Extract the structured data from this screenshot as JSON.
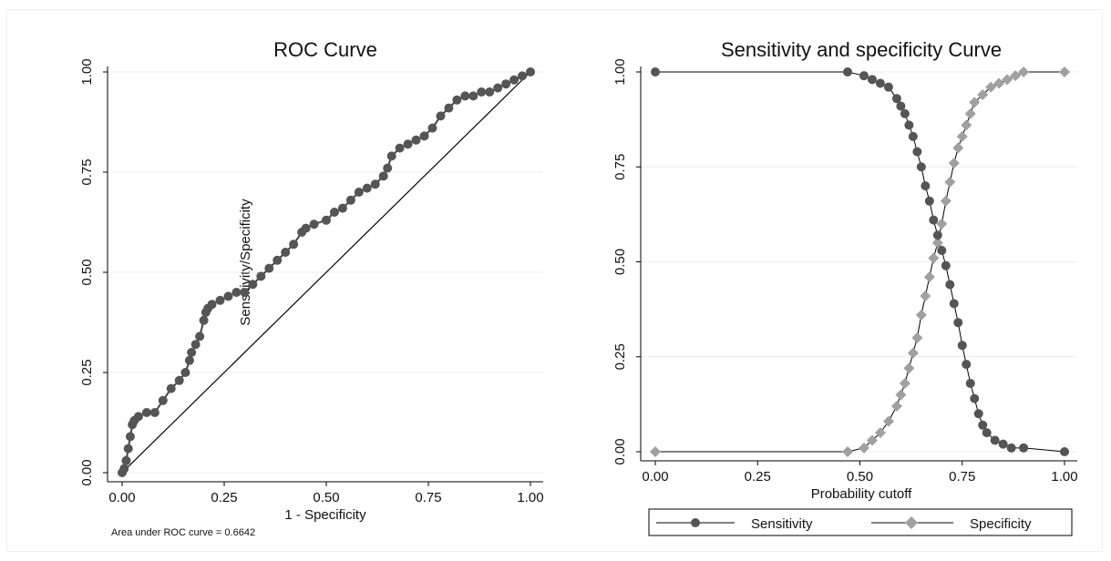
{
  "colors": {
    "sensitivity": "#555555",
    "specificity": "#a0a0a0",
    "line": "#000000",
    "grid": "#ececec"
  },
  "chart_data": [
    {
      "type": "line",
      "title": "ROC Curve",
      "xlabel": "1 - Specificity",
      "ylabel": "",
      "annotation": "Sensitivity/Specificity",
      "footnote": "Area under ROC curve = 0.6642",
      "xlim": [
        0,
        1
      ],
      "ylim": [
        0,
        1
      ],
      "xticks": [
        "0.00",
        "0.25",
        "0.50",
        "0.75",
        "1.00"
      ],
      "yticks": [
        "0.00",
        "0.25",
        "0.50",
        "0.75",
        "1.00"
      ],
      "grid": true,
      "reference_line": [
        [
          0,
          0
        ],
        [
          1,
          1
        ]
      ],
      "series": [
        {
          "x": [
            0.0,
            0.005,
            0.01,
            0.015,
            0.02,
            0.025,
            0.03,
            0.04,
            0.06,
            0.08,
            0.1,
            0.12,
            0.14,
            0.155,
            0.165,
            0.17,
            0.18,
            0.19,
            0.2,
            0.205,
            0.21,
            0.22,
            0.24,
            0.26,
            0.28,
            0.3,
            0.32,
            0.34,
            0.36,
            0.38,
            0.4,
            0.42,
            0.44,
            0.45,
            0.47,
            0.5,
            0.52,
            0.54,
            0.56,
            0.58,
            0.6,
            0.62,
            0.64,
            0.65,
            0.66,
            0.68,
            0.7,
            0.72,
            0.74,
            0.76,
            0.78,
            0.8,
            0.82,
            0.84,
            0.86,
            0.88,
            0.9,
            0.92,
            0.94,
            0.96,
            0.98,
            1.0
          ],
          "y": [
            0.0,
            0.01,
            0.03,
            0.06,
            0.09,
            0.12,
            0.13,
            0.14,
            0.15,
            0.15,
            0.18,
            0.21,
            0.23,
            0.25,
            0.28,
            0.3,
            0.32,
            0.34,
            0.38,
            0.4,
            0.41,
            0.42,
            0.43,
            0.44,
            0.45,
            0.45,
            0.47,
            0.49,
            0.51,
            0.53,
            0.55,
            0.57,
            0.6,
            0.61,
            0.62,
            0.63,
            0.65,
            0.66,
            0.68,
            0.7,
            0.71,
            0.72,
            0.74,
            0.76,
            0.79,
            0.81,
            0.82,
            0.83,
            0.84,
            0.86,
            0.89,
            0.91,
            0.93,
            0.94,
            0.94,
            0.95,
            0.95,
            0.96,
            0.97,
            0.98,
            0.99,
            1.0
          ]
        }
      ]
    },
    {
      "type": "line",
      "title": "Sensitivity and specificity Curve",
      "xlabel": "Probability cutoff",
      "ylabel": "",
      "xlim": [
        0,
        1
      ],
      "ylim": [
        0,
        1
      ],
      "xticks": [
        "0.00",
        "0.25",
        "0.50",
        "0.75",
        "1.00"
      ],
      "yticks": [
        "0.00",
        "0.25",
        "0.50",
        "0.75",
        "1.00"
      ],
      "grid": true,
      "legend_position": "bottom",
      "series": [
        {
          "name": "Sensitivity",
          "marker": "circle",
          "x": [
            0.0,
            0.47,
            0.51,
            0.53,
            0.55,
            0.57,
            0.59,
            0.6,
            0.61,
            0.62,
            0.63,
            0.64,
            0.65,
            0.66,
            0.67,
            0.68,
            0.69,
            0.7,
            0.71,
            0.72,
            0.73,
            0.74,
            0.75,
            0.76,
            0.77,
            0.78,
            0.79,
            0.8,
            0.81,
            0.83,
            0.85,
            0.87,
            0.9,
            1.0
          ],
          "y": [
            1.0,
            1.0,
            0.99,
            0.98,
            0.97,
            0.96,
            0.93,
            0.91,
            0.89,
            0.86,
            0.83,
            0.79,
            0.75,
            0.7,
            0.66,
            0.61,
            0.57,
            0.53,
            0.49,
            0.44,
            0.39,
            0.34,
            0.28,
            0.23,
            0.18,
            0.14,
            0.1,
            0.07,
            0.05,
            0.03,
            0.02,
            0.01,
            0.01,
            0.0
          ]
        },
        {
          "name": "Specificity",
          "marker": "diamond",
          "x": [
            0.0,
            0.47,
            0.51,
            0.53,
            0.55,
            0.57,
            0.59,
            0.6,
            0.61,
            0.62,
            0.63,
            0.64,
            0.65,
            0.66,
            0.67,
            0.68,
            0.69,
            0.7,
            0.71,
            0.72,
            0.73,
            0.74,
            0.75,
            0.76,
            0.77,
            0.78,
            0.8,
            0.82,
            0.84,
            0.86,
            0.88,
            0.9,
            1.0
          ],
          "y": [
            0.0,
            0.0,
            0.01,
            0.03,
            0.05,
            0.08,
            0.12,
            0.15,
            0.18,
            0.22,
            0.26,
            0.3,
            0.36,
            0.41,
            0.46,
            0.51,
            0.55,
            0.6,
            0.66,
            0.71,
            0.76,
            0.8,
            0.83,
            0.86,
            0.89,
            0.92,
            0.94,
            0.96,
            0.97,
            0.98,
            0.99,
            1.0,
            1.0
          ]
        }
      ]
    }
  ]
}
